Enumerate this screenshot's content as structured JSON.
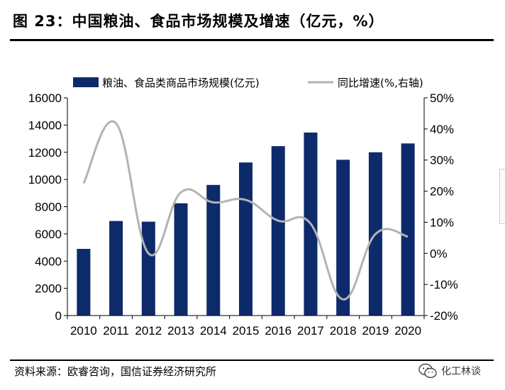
{
  "header": {
    "title": "图 23：中国粮油、食品市场规模及增速（亿元，%）"
  },
  "source": {
    "text": "资料来源：欧睿咨询，国信证券经济研究所"
  },
  "watermark": {
    "text": "化工林谈",
    "icon": "wechat-icon"
  },
  "chart_data": {
    "type": "bar",
    "categories": [
      "2010",
      "2011",
      "2012",
      "2013",
      "2014",
      "2015",
      "2016",
      "2017",
      "2018",
      "2019",
      "2020"
    ],
    "series": [
      {
        "name": "粮油、食品类商品市场规模(亿元)",
        "type": "bar",
        "axis": "left",
        "color": "#0d2a6b",
        "values": [
          4900,
          6950,
          6900,
          8250,
          9600,
          11250,
          12450,
          13450,
          11450,
          12000,
          12650
        ]
      },
      {
        "name": "同比增速(%,右轴)",
        "type": "line",
        "axis": "right",
        "color": "#b3b3b3",
        "values": [
          22.5,
          41.8,
          0,
          19.6,
          16.4,
          17.2,
          10.5,
          9.5,
          -14.8,
          6.2,
          5.4
        ]
      }
    ],
    "y_left": {
      "lim": [
        0,
        16000
      ],
      "ticks": [
        "0",
        "2000",
        "4000",
        "6000",
        "8000",
        "10000",
        "12000",
        "14000",
        "16000"
      ]
    },
    "y_right": {
      "lim": [
        -20,
        50
      ],
      "ticks": [
        "-20%",
        "-10%",
        "0%",
        "10%",
        "20%",
        "30%",
        "40%",
        "50%"
      ]
    },
    "grid": false,
    "legend_position": "top"
  }
}
